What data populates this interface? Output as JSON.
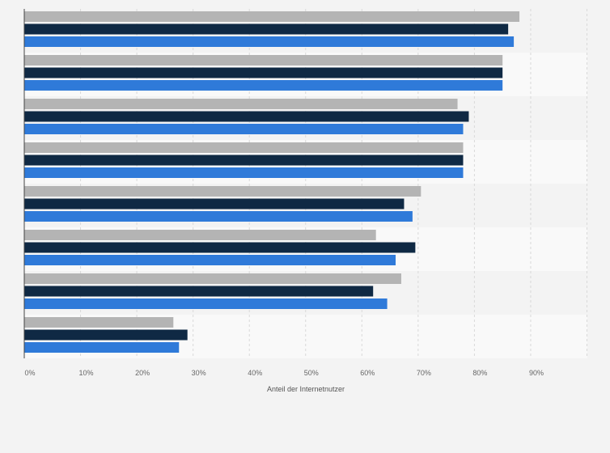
{
  "chart_data": {
    "type": "bar",
    "orientation": "horizontal",
    "xlabel": "Anteil der Internetnutzer",
    "xlim": [
      0,
      100
    ],
    "x_ticks": [
      0,
      10,
      20,
      30,
      40,
      50,
      60,
      70,
      80,
      90
    ],
    "x_tick_labels": [
      "0%",
      "10%",
      "20%",
      "30%",
      "40%",
      "50%",
      "60%",
      "70%",
      "80%",
      "90%"
    ],
    "grid": true,
    "legend": "none",
    "categories": [
      "",
      "",
      "",
      "",
      "",
      "",
      "",
      ""
    ],
    "series": [
      {
        "color": "#b4b4b4",
        "values": [
          88,
          85,
          77,
          78,
          70.5,
          62.5,
          67,
          26.5
        ]
      },
      {
        "color": "#0f2944",
        "values": [
          86,
          85,
          79,
          78,
          67.5,
          69.5,
          62,
          29
        ]
      },
      {
        "color": "#2f7ad9",
        "values": [
          87,
          85,
          78,
          78,
          69,
          66,
          64.5,
          27.5
        ]
      }
    ]
  }
}
